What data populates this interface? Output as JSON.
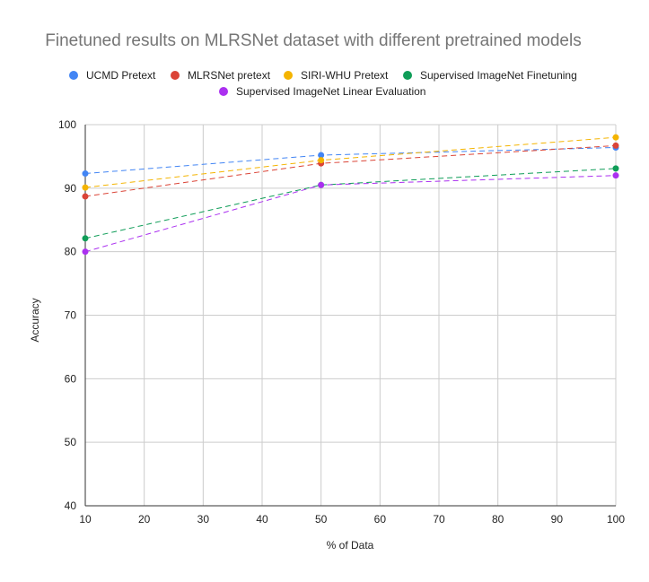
{
  "chart_data": {
    "type": "line",
    "title": "Finetuned results on MLRSNet dataset with different pretrained models",
    "xlabel": "% of Data",
    "ylabel": "Accuracy",
    "xlim": [
      10,
      100
    ],
    "ylim": [
      40,
      100
    ],
    "x_ticks": [
      10,
      20,
      30,
      40,
      50,
      60,
      70,
      80,
      90,
      100
    ],
    "y_ticks": [
      40,
      50,
      60,
      70,
      80,
      90,
      100
    ],
    "grid": true,
    "legend_position": "top",
    "x": [
      10,
      50,
      100
    ],
    "series": [
      {
        "name": "UCMD Pretext",
        "color": "#4285f4",
        "values": [
          92.3,
          95.2,
          96.4
        ]
      },
      {
        "name": "MLRSNet pretext",
        "color": "#db4437",
        "values": [
          88.7,
          93.9,
          96.7
        ]
      },
      {
        "name": "SIRI-WHU Pretext",
        "color": "#f4b400",
        "values": [
          90.1,
          94.4,
          98.0
        ]
      },
      {
        "name": "Supervised ImageNet Finetuning",
        "color": "#0f9d58",
        "values": [
          82.1,
          90.5,
          93.1
        ]
      },
      {
        "name": "Supervised ImageNet Linear Evaluation",
        "color": "#ab30f0",
        "values": [
          80.0,
          90.5,
          92.0
        ]
      }
    ]
  }
}
